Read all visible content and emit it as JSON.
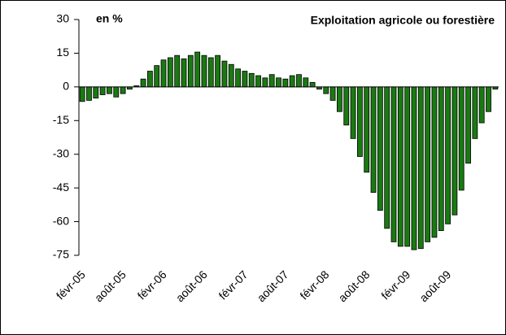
{
  "chart_data": {
    "type": "bar",
    "title": "Exploitation agricole ou forestière",
    "y_label": "en %",
    "color": "#1a7a12",
    "categories": [
      "févr-05",
      null,
      null,
      null,
      null,
      null,
      "août-05",
      null,
      null,
      null,
      null,
      null,
      "févr-06",
      null,
      null,
      null,
      null,
      null,
      "août-06",
      null,
      null,
      null,
      null,
      null,
      "févr-07",
      null,
      null,
      null,
      null,
      null,
      "août-07",
      null,
      null,
      null,
      null,
      null,
      "févr-08",
      null,
      null,
      null,
      null,
      null,
      "août-08",
      null,
      null,
      null,
      null,
      null,
      "févr-09",
      null,
      null,
      null,
      null,
      null,
      "août-09",
      null,
      null,
      null,
      null,
      null,
      null,
      null
    ],
    "values": [
      -6.5,
      -6,
      -5,
      -3.5,
      -3,
      -4.5,
      -3,
      -1,
      0.5,
      3.5,
      7,
      9.5,
      12,
      13,
      14,
      12.5,
      14,
      15.5,
      14,
      13,
      14,
      11.5,
      10,
      8,
      7,
      6,
      5,
      4,
      5.5,
      4,
      3.5,
      5,
      5.5,
      4,
      2,
      -1,
      -3,
      -6,
      -11,
      -17,
      -23,
      -31,
      -38,
      -47,
      -55,
      -63,
      -69,
      -71,
      -71,
      -72.5,
      -72,
      -69,
      -67,
      -64,
      -61,
      -57,
      -46,
      -34,
      -23,
      -16,
      -11,
      -1
    ],
    "ylim": [
      -75,
      30
    ],
    "yticks": [
      30,
      15,
      0,
      -15,
      -30,
      -45,
      -60,
      -75
    ]
  }
}
